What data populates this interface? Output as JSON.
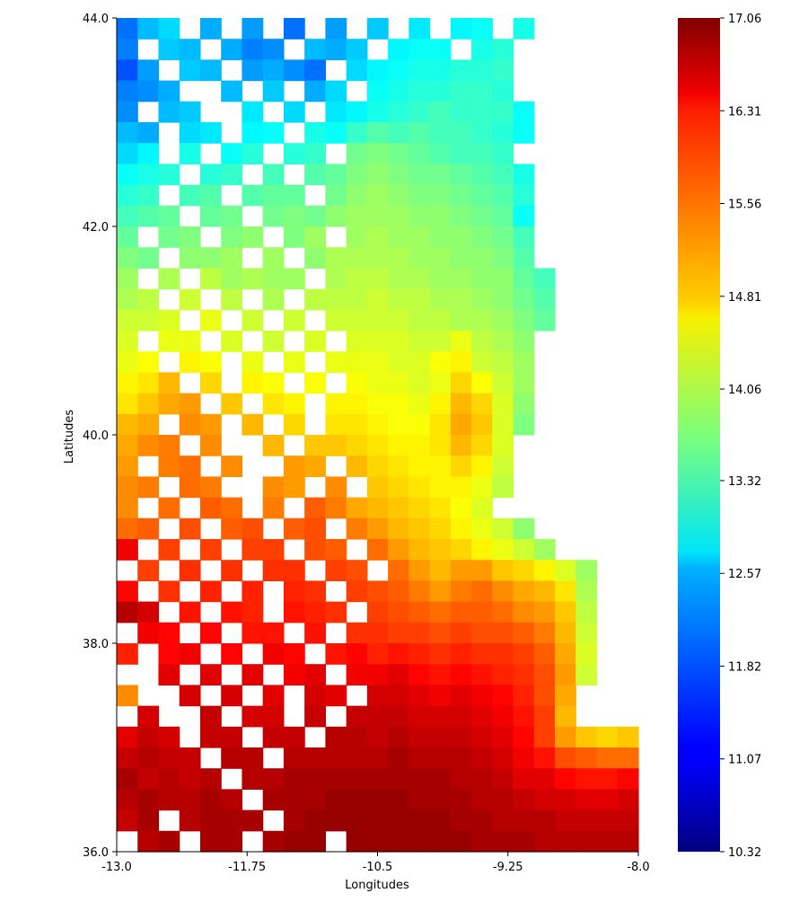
{
  "chart_data": {
    "type": "heatmap",
    "title": "",
    "xlabel": "Longitudes",
    "ylabel": "Latitudes",
    "xlim": [
      -13.0,
      -8.0
    ],
    "ylim": [
      36.0,
      44.0
    ],
    "x_ticks": [
      -13.0,
      -11.75,
      -10.5,
      -9.25,
      -8.0
    ],
    "x_tick_labels": [
      "-13.0",
      "-11.75",
      "-10.5",
      "-9.25",
      "-8.0"
    ],
    "y_ticks": [
      36.0,
      38.0,
      40.0,
      42.0,
      44.0
    ],
    "y_tick_labels": [
      "36.0",
      "38.0",
      "40.0",
      "42.0",
      "44.0"
    ],
    "colormap": "jet",
    "missing_color": "#ffffff",
    "grid": false,
    "colorbar": {
      "min": 10.32,
      "max": 17.06,
      "ticks": [
        10.32,
        11.07,
        11.82,
        12.57,
        13.32,
        14.06,
        14.81,
        15.56,
        16.31,
        17.06
      ],
      "tick_labels": [
        "10.32",
        "11.07",
        "11.82",
        "12.57",
        "13.32",
        "14.06",
        "14.81",
        "15.56",
        "16.31",
        "17.06"
      ],
      "placement": "right"
    },
    "grid_resolution": {
      "lon_cells": 25,
      "lat_cells": 40
    },
    "grid_note": "values are approximate temperatures read from the colour map; row 0 = northernmost band (44.0-43.8), row 39 = southernmost band (36.2-36.0); column 0 = westernmost (-13.0); null = no data (white)",
    "values": [
      [
        11.9,
        12.4,
        12.6,
        null,
        12.3,
        null,
        12.2,
        null,
        11.9,
        null,
        12.2,
        null,
        12.5,
        null,
        12.7,
        null,
        12.8,
        12.9,
        null,
        13.0,
        null,
        null,
        null,
        null,
        null
      ],
      [
        12.0,
        null,
        12.5,
        12.4,
        null,
        12.3,
        12.0,
        12.1,
        null,
        12.4,
        12.3,
        12.5,
        null,
        12.8,
        12.9,
        12.9,
        null,
        13.0,
        13.1,
        null,
        null,
        null,
        null,
        null,
        null
      ],
      [
        11.7,
        12.2,
        null,
        12.5,
        12.4,
        null,
        12.2,
        12.3,
        12.1,
        11.9,
        null,
        12.6,
        12.8,
        12.9,
        13.0,
        13.0,
        13.1,
        13.1,
        13.2,
        null,
        null,
        null,
        null,
        null,
        null
      ],
      [
        12.0,
        12.1,
        12.3,
        null,
        null,
        12.4,
        null,
        12.5,
        null,
        12.3,
        12.6,
        null,
        12.9,
        13.0,
        13.1,
        13.1,
        13.2,
        13.2,
        13.1,
        null,
        null,
        null,
        null,
        null,
        null
      ],
      [
        12.1,
        null,
        12.4,
        12.5,
        null,
        null,
        12.7,
        null,
        12.6,
        null,
        12.7,
        12.8,
        13.0,
        13.1,
        13.2,
        13.3,
        13.2,
        13.2,
        13.2,
        12.9,
        null,
        null,
        null,
        null,
        null
      ],
      [
        12.4,
        12.3,
        null,
        12.6,
        12.7,
        null,
        12.8,
        12.9,
        null,
        13.0,
        12.9,
        13.2,
        13.4,
        13.3,
        13.4,
        13.3,
        13.3,
        13.2,
        13.1,
        12.9,
        null,
        null,
        null,
        null,
        null
      ],
      [
        12.6,
        12.8,
        null,
        13.0,
        null,
        12.9,
        13.1,
        null,
        13.1,
        13.2,
        null,
        13.6,
        13.7,
        13.6,
        13.5,
        13.4,
        13.3,
        13.3,
        13.2,
        null,
        null,
        null,
        null,
        null,
        null
      ],
      [
        12.9,
        13.0,
        13.1,
        null,
        13.1,
        13.2,
        null,
        13.3,
        null,
        13.4,
        13.5,
        13.7,
        13.8,
        13.7,
        13.6,
        13.6,
        13.5,
        13.4,
        13.3,
        13.0,
        null,
        null,
        null,
        null,
        null
      ],
      [
        13.1,
        13.2,
        null,
        13.3,
        13.4,
        null,
        13.4,
        13.5,
        13.5,
        null,
        13.6,
        13.8,
        13.9,
        13.8,
        13.7,
        13.7,
        13.6,
        13.5,
        13.4,
        13.1,
        null,
        null,
        null,
        null,
        null
      ],
      [
        13.3,
        13.4,
        13.5,
        null,
        13.5,
        13.6,
        null,
        13.6,
        13.7,
        13.6,
        13.8,
        13.9,
        13.9,
        13.9,
        13.8,
        13.8,
        13.7,
        13.6,
        13.5,
        12.9,
        null,
        null,
        null,
        null,
        null
      ],
      [
        13.5,
        null,
        13.6,
        13.7,
        null,
        13.7,
        13.8,
        null,
        13.7,
        13.9,
        null,
        13.9,
        14.0,
        13.9,
        13.9,
        13.8,
        13.8,
        13.7,
        13.6,
        13.3,
        null,
        null,
        null,
        null,
        null
      ],
      [
        13.7,
        13.6,
        null,
        13.8,
        13.8,
        13.9,
        null,
        13.9,
        null,
        13.8,
        14.0,
        14.0,
        14.0,
        14.0,
        13.9,
        13.9,
        13.8,
        13.8,
        13.7,
        13.4,
        null,
        null,
        null,
        null,
        null
      ],
      [
        13.9,
        null,
        14.0,
        null,
        14.1,
        13.9,
        14.0,
        13.9,
        13.9,
        null,
        14.0,
        14.1,
        14.1,
        14.0,
        14.0,
        13.9,
        13.9,
        13.8,
        13.8,
        13.5,
        13.3,
        null,
        null,
        null,
        null
      ],
      [
        14.0,
        14.1,
        null,
        14.2,
        null,
        14.1,
        null,
        14.0,
        null,
        14.1,
        14.1,
        14.1,
        14.2,
        14.1,
        14.1,
        14.0,
        14.0,
        13.9,
        13.8,
        13.6,
        13.4,
        null,
        null,
        null,
        null
      ],
      [
        14.2,
        14.2,
        14.3,
        null,
        14.4,
        null,
        14.2,
        null,
        14.2,
        null,
        14.2,
        14.2,
        14.2,
        14.2,
        14.1,
        14.1,
        14.0,
        14.0,
        13.9,
        13.7,
        13.5,
        null,
        null,
        null,
        null
      ],
      [
        14.3,
        null,
        14.4,
        14.4,
        null,
        14.3,
        null,
        14.2,
        null,
        14.3,
        null,
        14.3,
        14.3,
        14.3,
        14.2,
        14.2,
        14.4,
        14.1,
        14.0,
        13.8,
        null,
        null,
        null,
        null,
        null
      ],
      [
        14.4,
        14.5,
        null,
        14.6,
        14.5,
        null,
        14.4,
        null,
        14.4,
        null,
        14.4,
        14.4,
        14.4,
        14.3,
        14.3,
        14.5,
        14.6,
        14.2,
        14.1,
        13.9,
        null,
        null,
        null,
        null,
        null
      ],
      [
        14.6,
        14.7,
        15.0,
        null,
        14.8,
        null,
        14.6,
        14.5,
        null,
        14.5,
        null,
        14.5,
        14.4,
        14.4,
        14.3,
        14.4,
        14.8,
        14.5,
        14.2,
        13.9,
        null,
        null,
        null,
        null,
        null
      ],
      [
        14.7,
        14.9,
        15.1,
        15.2,
        null,
        14.9,
        null,
        14.7,
        14.6,
        null,
        14.6,
        14.6,
        14.5,
        14.5,
        14.4,
        14.6,
        15.0,
        14.8,
        14.3,
        13.8,
        null,
        null,
        null,
        null,
        null
      ],
      [
        15.0,
        15.1,
        null,
        15.3,
        15.2,
        null,
        15.0,
        null,
        14.8,
        null,
        14.7,
        14.7,
        14.6,
        14.5,
        14.5,
        14.7,
        15.1,
        14.9,
        14.3,
        13.7,
        null,
        null,
        null,
        null,
        null
      ],
      [
        15.1,
        15.3,
        15.4,
        null,
        15.3,
        null,
        null,
        15.0,
        null,
        14.9,
        14.9,
        14.8,
        14.7,
        14.6,
        14.6,
        14.7,
        15.0,
        14.8,
        14.3,
        null,
        null,
        null,
        null,
        null,
        null
      ],
      [
        15.2,
        null,
        15.4,
        15.5,
        null,
        15.3,
        null,
        null,
        15.2,
        15.1,
        null,
        15.0,
        14.8,
        14.7,
        14.6,
        14.6,
        14.8,
        14.6,
        14.2,
        null,
        null,
        null,
        null,
        null,
        null
      ],
      [
        15.3,
        15.4,
        null,
        15.5,
        15.4,
        null,
        null,
        15.3,
        15.2,
        null,
        15.3,
        null,
        14.9,
        14.8,
        14.7,
        14.6,
        14.6,
        14.4,
        14.1,
        null,
        null,
        null,
        null,
        null,
        null
      ],
      [
        15.3,
        null,
        15.5,
        null,
        15.6,
        15.5,
        null,
        15.4,
        null,
        15.6,
        15.4,
        15.1,
        15.0,
        14.9,
        14.8,
        14.7,
        14.5,
        14.3,
        null,
        null,
        null,
        null,
        null,
        null,
        null
      ],
      [
        15.5,
        15.6,
        null,
        15.7,
        null,
        15.6,
        15.7,
        null,
        15.6,
        15.7,
        null,
        15.4,
        15.2,
        15.0,
        14.9,
        14.8,
        14.6,
        14.4,
        14.2,
        13.8,
        null,
        null,
        null,
        null,
        null
      ],
      [
        16.3,
        null,
        15.8,
        null,
        15.8,
        null,
        15.8,
        15.8,
        null,
        15.7,
        15.6,
        null,
        15.5,
        15.2,
        15.0,
        14.9,
        14.8,
        14.6,
        14.4,
        14.2,
        13.9,
        null,
        null,
        null,
        null
      ],
      [
        null,
        15.8,
        null,
        15.9,
        null,
        15.9,
        null,
        15.9,
        15.9,
        null,
        15.8,
        15.7,
        null,
        15.5,
        15.2,
        15.0,
        15.2,
        15.2,
        14.9,
        14.8,
        14.6,
        14.3,
        13.9,
        null,
        null
      ],
      [
        16.2,
        null,
        15.9,
        null,
        16.0,
        null,
        16.0,
        null,
        16.0,
        15.9,
        null,
        15.8,
        15.7,
        15.6,
        15.4,
        15.2,
        15.4,
        15.5,
        15.3,
        15.1,
        15.0,
        14.7,
        14.0,
        null,
        null
      ],
      [
        16.7,
        16.5,
        null,
        16.1,
        null,
        16.1,
        16.0,
        null,
        16.1,
        16.0,
        15.9,
        null,
        15.8,
        15.7,
        15.6,
        15.5,
        15.6,
        15.6,
        15.5,
        15.3,
        15.2,
        14.9,
        14.1,
        null,
        null
      ],
      [
        null,
        16.3,
        16.2,
        null,
        16.2,
        null,
        16.1,
        16.1,
        null,
        16.1,
        null,
        15.9,
        15.9,
        15.8,
        15.8,
        15.7,
        15.8,
        15.7,
        15.7,
        15.6,
        15.4,
        15.0,
        14.2,
        null,
        null
      ],
      [
        16.0,
        null,
        16.2,
        16.3,
        null,
        16.2,
        null,
        16.3,
        16.2,
        null,
        16.1,
        16.2,
        16.0,
        16.1,
        16.0,
        15.9,
        16.0,
        15.9,
        15.9,
        15.8,
        15.6,
        15.1,
        14.3,
        null,
        null
      ],
      [
        null,
        null,
        16.4,
        null,
        16.4,
        null,
        16.4,
        null,
        16.3,
        16.4,
        null,
        16.3,
        16.3,
        16.4,
        16.2,
        16.1,
        16.2,
        16.1,
        16.0,
        15.9,
        15.7,
        15.2,
        14.2,
        null,
        null
      ],
      [
        15.3,
        null,
        null,
        16.5,
        null,
        16.5,
        null,
        16.4,
        null,
        16.5,
        16.4,
        null,
        16.5,
        16.5,
        16.4,
        16.3,
        16.4,
        16.3,
        16.2,
        16.0,
        15.7,
        15.1,
        null,
        null,
        null
      ],
      [
        null,
        16.5,
        null,
        null,
        16.6,
        null,
        16.5,
        16.5,
        null,
        16.6,
        null,
        16.6,
        16.6,
        16.6,
        16.5,
        16.5,
        16.5,
        16.4,
        16.3,
        16.1,
        15.8,
        15.0,
        null,
        null,
        null
      ],
      [
        16.4,
        16.6,
        16.5,
        null,
        16.6,
        16.6,
        null,
        16.6,
        16.6,
        null,
        16.7,
        16.7,
        16.6,
        16.7,
        16.6,
        16.6,
        16.6,
        16.5,
        16.4,
        16.2,
        15.8,
        15.2,
        14.9,
        14.8,
        14.9
      ],
      [
        16.6,
        16.7,
        16.6,
        16.6,
        null,
        16.7,
        16.7,
        null,
        16.7,
        16.7,
        16.7,
        16.7,
        16.7,
        16.8,
        16.7,
        16.7,
        16.7,
        16.6,
        16.5,
        16.3,
        16.1,
        15.7,
        15.6,
        15.5,
        15.5
      ],
      [
        16.8,
        16.6,
        16.7,
        16.6,
        16.7,
        null,
        16.7,
        16.7,
        16.8,
        16.8,
        16.8,
        16.8,
        16.8,
        16.8,
        16.8,
        16.8,
        16.7,
        16.7,
        16.6,
        16.4,
        16.4,
        16.2,
        16.1,
        16.1,
        16.2
      ],
      [
        16.7,
        16.8,
        16.7,
        16.7,
        16.8,
        16.7,
        null,
        16.8,
        16.8,
        16.8,
        16.9,
        16.9,
        16.9,
        16.9,
        16.8,
        16.8,
        16.8,
        16.7,
        16.7,
        16.6,
        16.5,
        16.5,
        16.4,
        16.4,
        16.5
      ],
      [
        16.6,
        16.8,
        null,
        16.7,
        16.8,
        16.8,
        16.8,
        null,
        16.8,
        16.9,
        16.9,
        16.9,
        16.9,
        16.9,
        16.9,
        16.9,
        16.8,
        16.8,
        16.7,
        16.7,
        16.7,
        16.6,
        16.6,
        16.6,
        16.6
      ],
      [
        null,
        16.7,
        16.8,
        null,
        16.8,
        16.8,
        null,
        16.8,
        16.9,
        16.9,
        null,
        16.9,
        16.9,
        16.9,
        16.9,
        16.9,
        16.9,
        16.8,
        16.8,
        16.8,
        16.7,
        16.7,
        16.7,
        16.7,
        16.7
      ]
    ]
  }
}
